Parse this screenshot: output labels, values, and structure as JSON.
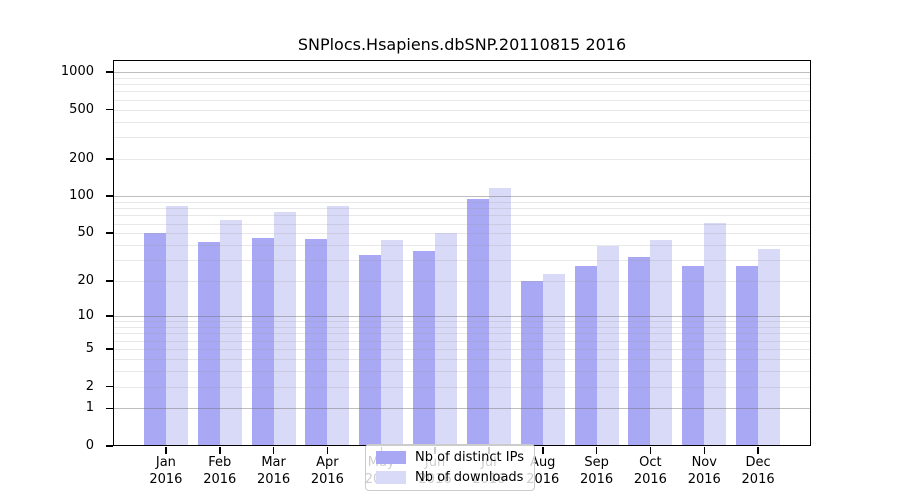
{
  "title": "SNPlocs.Hsapiens.dbSNP.20110815 2016",
  "legend": {
    "series1_label": "Nb of distinct IPs",
    "series2_label": "Nb of downloads"
  },
  "colors": {
    "ips_bar": "#a8a8f4",
    "downloads_bar": "#d9d9f8",
    "grid_major": "rgba(110,110,110,0.45)",
    "grid_minor": "rgba(150,150,150,0.22)"
  },
  "chart_data": {
    "type": "bar",
    "title": "SNPlocs.Hsapiens.dbSNP.20110815 2016",
    "xlabel": "",
    "ylabel": "",
    "year": "2016",
    "categories": [
      "Jan",
      "Feb",
      "Mar",
      "Apr",
      "May",
      "Jun",
      "Jul",
      "Aug",
      "Sep",
      "Oct",
      "Nov",
      "Dec"
    ],
    "series": [
      {
        "name": "Nb of distinct IPs",
        "color": "#a8a8f4",
        "values": [
          50,
          42,
          46,
          45,
          33,
          36,
          95,
          20,
          27,
          32,
          27,
          27
        ]
      },
      {
        "name": "Nb of downloads",
        "color": "#d9d9f8",
        "values": [
          84,
          64,
          75,
          84,
          44,
          50,
          117,
          23,
          39,
          44,
          61,
          37
        ]
      }
    ],
    "y_axis": {
      "scale": "log1p",
      "ticks": [
        0,
        1,
        2,
        5,
        10,
        20,
        50,
        100,
        200,
        500,
        1000
      ],
      "top_value": 1250
    },
    "grid": {
      "major": [
        1,
        10,
        100,
        1000
      ],
      "minor": [
        2,
        3,
        4,
        5,
        6,
        7,
        8,
        9,
        20,
        30,
        40,
        50,
        60,
        70,
        80,
        90,
        200,
        300,
        400,
        500,
        600,
        700,
        800,
        900
      ]
    },
    "legend_position": "lower center",
    "grid_on": true
  }
}
